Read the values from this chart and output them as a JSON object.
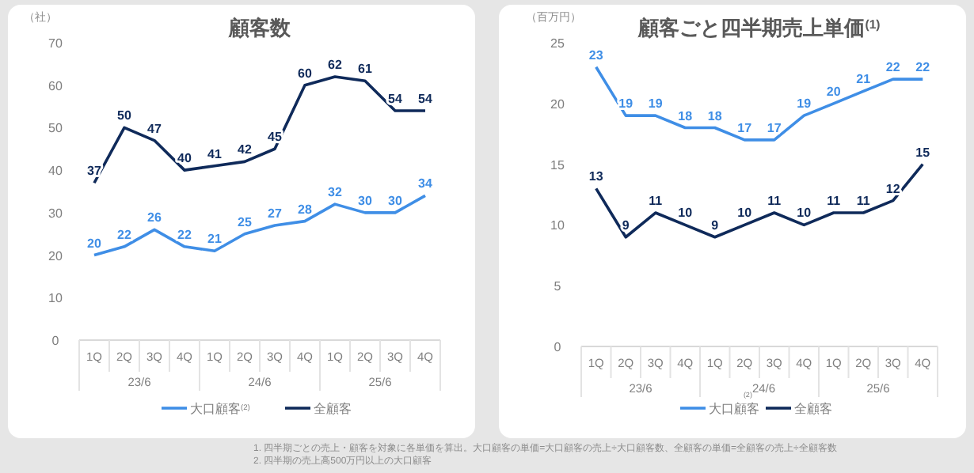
{
  "chart_data": [
    {
      "type": "line",
      "title": "顧客数",
      "ylabel": "（社）",
      "categories": [
        "1Q",
        "2Q",
        "3Q",
        "4Q",
        "1Q",
        "2Q",
        "3Q",
        "4Q",
        "1Q",
        "2Q",
        "3Q",
        "4Q"
      ],
      "series": [
        {
          "name": "大口顧客$^{(2)}$",
          "color": "#3f8ee6",
          "values": [
            20,
            22,
            26,
            22,
            21,
            25,
            27,
            28,
            32,
            30,
            30,
            34
          ]
        },
        {
          "name": "全顧客",
          "color": "#0f2a5a",
          "values": [
            37,
            50,
            47,
            40,
            41,
            42,
            45,
            60,
            62,
            61,
            54,
            54
          ]
        }
      ],
      "ylim": [
        0,
        70
      ],
      "yticks": [
        0,
        10,
        20,
        30,
        40,
        50,
        60,
        70
      ],
      "grid": false,
      "legend": "bottom",
      "data_labels": true,
      "marker": "none",
      "line_style": "solid",
      "annotations": [
        "23/6",
        "24/6",
        "25/6",
        "1.  四半期ごとの売上・顧客を対象に各単価を算出。大口顧客の単価=大口顧客の売上÷大口顧客数、全顧客の単価=全顧客の売上÷全顧客数",
        "2.  四半期の売上高500万円以上の大口顧客"
      ]
    },
    {
      "type": "line",
      "title": "顧客ごと四半期売上単価$^{(1)}$",
      "ylabel": "（百万円）",
      "categories": [
        "1Q",
        "2Q",
        "3Q",
        "4Q",
        "1Q",
        "2Q",
        "3Q",
        "4Q",
        "1Q",
        "2Q",
        "3Q",
        "4Q"
      ],
      "series": [
        {
          "name": "大口顧客",
          "color": "#3f8ee6",
          "values": [
            23,
            19,
            19,
            18,
            18,
            17,
            17,
            19,
            20,
            21,
            22,
            22
          ]
        },
        {
          "name": "全顧客",
          "color": "#0f2a5a",
          "values": [
            13,
            9,
            11,
            10,
            9,
            10,
            11,
            10,
            11,
            11,
            12,
            15
          ]
        }
      ],
      "ylim": [
        0,
        25
      ],
      "yticks": [
        0,
        5,
        10,
        15,
        20,
        25
      ],
      "grid": false,
      "legend": "bottom",
      "data_labels": true,
      "marker": "none",
      "line_style": "solid",
      "annotations": [
        "23/6",
        "$_{(2)}$24/6",
        "25/6"
      ]
    }
  ]
}
